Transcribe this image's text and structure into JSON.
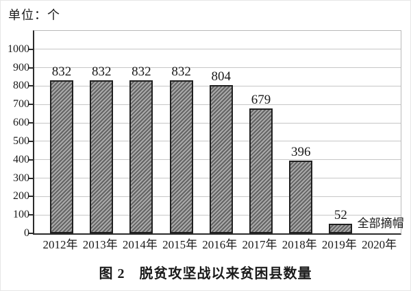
{
  "unit_label": "单位：个",
  "caption": "图 2　脱贫攻坚战以来贫困县数量",
  "chart_data": {
    "type": "bar",
    "title": "图 2　脱贫攻坚战以来贫困县数量",
    "unit": "单位：个",
    "categories": [
      "2012年",
      "2013年",
      "2014年",
      "2015年",
      "2016年",
      "2017年",
      "2018年",
      "2019年",
      "2020年"
    ],
    "values": [
      832,
      832,
      832,
      832,
      804,
      679,
      396,
      52,
      0
    ],
    "bar_labels": [
      "832",
      "832",
      "832",
      "832",
      "804",
      "679",
      "396",
      "52",
      ""
    ],
    "annotation": {
      "text": "全部摘帽",
      "category": "2020年",
      "category_index": 8
    },
    "xlabel": "",
    "ylabel": "",
    "ylim": [
      0,
      1100
    ],
    "yticks": [
      0,
      100,
      200,
      300,
      400,
      500,
      600,
      700,
      800,
      900,
      1000
    ],
    "grid": true,
    "legend_position": "none",
    "colors": {
      "bar_fill_light": "#a9a9a9",
      "bar_hatch_dark": "#646464",
      "bar_border": "#1f1f1f",
      "axis": "#2b2b2b",
      "gridline": "#c6c6c6",
      "frame": "#b9b9b9",
      "text": "#1a1a1a",
      "background": "#ffffff"
    }
  }
}
